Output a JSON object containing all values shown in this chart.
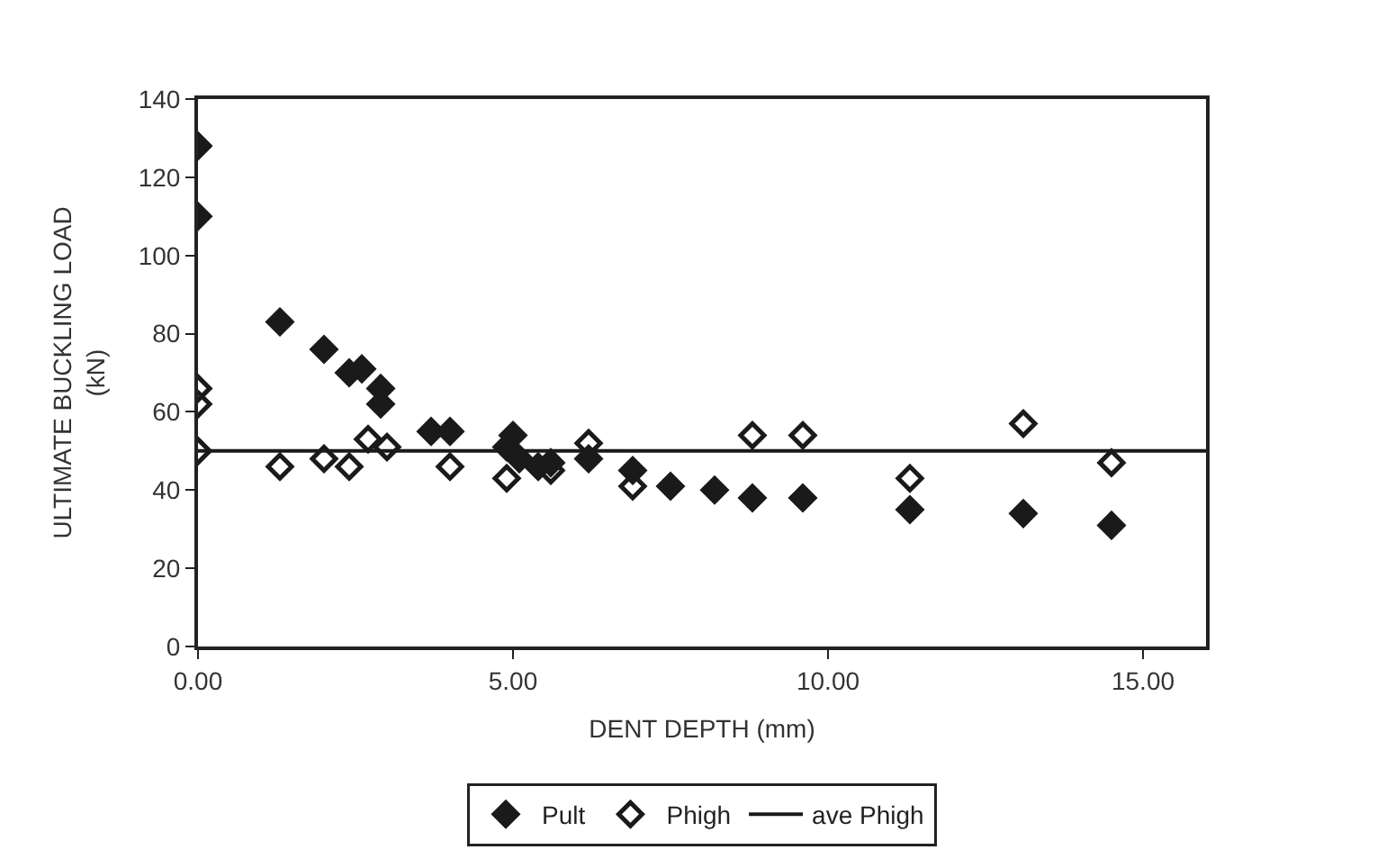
{
  "chart_data": {
    "type": "scatter",
    "xlabel": "DENT DEPTH (mm)",
    "ylabel": "ULTIMATE BUCKLING LOAD (kN)",
    "xlim": [
      0,
      16
    ],
    "xticks": [
      {
        "value": 0,
        "label": "0.00"
      },
      {
        "value": 5,
        "label": "5.00"
      },
      {
        "value": 10,
        "label": "10.00"
      },
      {
        "value": 15,
        "label": "15.00"
      }
    ],
    "ylim": [
      0,
      140
    ],
    "yticks": [
      0,
      20,
      40,
      60,
      80,
      100,
      120,
      140
    ],
    "legend": "bottom",
    "marker": "diamond",
    "series": [
      {
        "name": "Pult",
        "color": "#1a1a1a",
        "x": [
          0,
          0,
          1.3,
          2.0,
          2.4,
          2.6,
          2.9,
          2.9,
          3.7,
          4.0,
          5.0,
          4.9,
          5.1,
          5.4,
          5.6,
          6.2,
          6.9,
          7.5,
          8.2,
          8.8,
          9.6,
          11.3,
          13.1,
          14.5
        ],
        "values": [
          128,
          110,
          83,
          76,
          70,
          71,
          66,
          62,
          55,
          55,
          54,
          51,
          48,
          46,
          47,
          48,
          45,
          41,
          40,
          38,
          38,
          35,
          34,
          31
        ]
      },
      {
        "name": "Phigh",
        "color": "#1a1a1a",
        "x": [
          0,
          0,
          0,
          1.3,
          2.0,
          2.4,
          2.7,
          3.0,
          4.0,
          4.9,
          5.6,
          6.2,
          6.9,
          8.8,
          9.6,
          11.3,
          13.1,
          14.5
        ],
        "values": [
          66,
          62,
          50,
          46,
          48,
          46,
          53,
          51,
          46,
          43,
          45,
          52,
          41,
          54,
          54,
          43,
          57,
          47
        ]
      },
      {
        "name": "ave Phigh",
        "type": "line",
        "color": "#1a1a1a",
        "x": [
          0,
          16
        ],
        "values": [
          50,
          50
        ],
        "marker": "none"
      }
    ]
  }
}
